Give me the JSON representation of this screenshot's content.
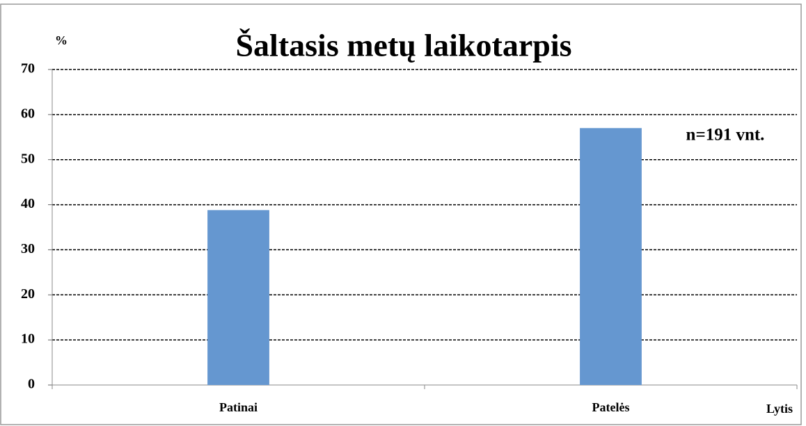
{
  "chart_data": {
    "type": "bar",
    "title": "Šaltasis metų laikotarpis",
    "y_label": "%",
    "x_label": "Lytis",
    "annotation": "n=191 vnt.",
    "categories": [
      "Patinai",
      "Patelės"
    ],
    "values": [
      38.8,
      57
    ],
    "color": "#6597d0",
    "ylim": [
      0,
      70
    ],
    "yticks": [
      0,
      10,
      20,
      30,
      40,
      50,
      60,
      70
    ],
    "grid": true
  }
}
